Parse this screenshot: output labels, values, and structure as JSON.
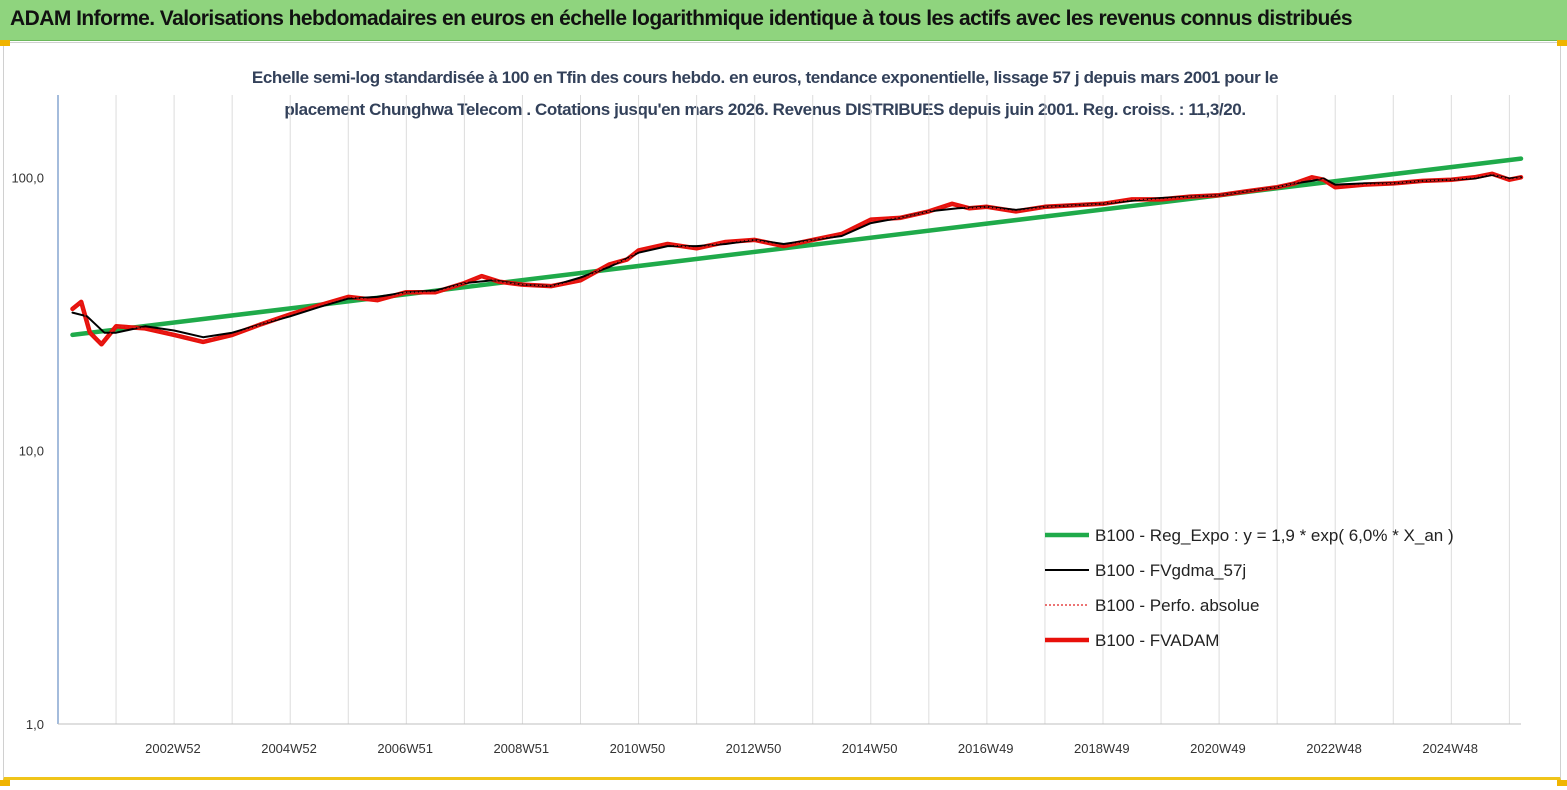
{
  "header": {
    "title": "ADAM Informe. Valorisations hebdomadaires en euros en échelle logarithmique identique à tous les actifs avec les revenus connus distribués"
  },
  "chart_data": {
    "type": "line",
    "subtitle_line1": "Echelle semi-log standardisée à 100 en Tfin des cours hebdo. en euros, tendance exponentielle, lissage 57 j depuis mars 2001 pour le",
    "subtitle_line2": "placement Chunghwa Telecom . Cotations jusqu'en mars 2026. Revenus DISTRIBUES depuis juin 2001. Reg. croiss. : 11,3/20.",
    "y_scale": "log",
    "ylim": [
      1,
      200
    ],
    "xlim": [
      2001.0,
      2026.2
    ],
    "y_ticks": [
      {
        "value": 100,
        "label": "100,0"
      },
      {
        "value": 10,
        "label": "10,0"
      },
      {
        "value": 1,
        "label": "1,0"
      }
    ],
    "x_ticks": [
      {
        "value": 2002.98,
        "label": "2002W52"
      },
      {
        "value": 2004.98,
        "label": "2004W52"
      },
      {
        "value": 2006.98,
        "label": "2006W51"
      },
      {
        "value": 2008.98,
        "label": "2008W51"
      },
      {
        "value": 2010.98,
        "label": "2010W50"
      },
      {
        "value": 2012.98,
        "label": "2012W50"
      },
      {
        "value": 2014.98,
        "label": "2014W50"
      },
      {
        "value": 2016.98,
        "label": "2016W49"
      },
      {
        "value": 2018.98,
        "label": "2018W49"
      },
      {
        "value": 2020.98,
        "label": "2020W49"
      },
      {
        "value": 2022.98,
        "label": "2022W48"
      },
      {
        "value": 2024.98,
        "label": "2024W48"
      }
    ],
    "grid": "vertical",
    "legend_position": "bottom-right",
    "series": [
      {
        "name": "B100 - Reg_Expo : y = 1,9 * exp( 6,0% *  X_an )",
        "color": "#1faa4a",
        "style": "thick",
        "x": [
          2001.25,
          2026.2
        ],
        "y": [
          26.5,
          117
        ]
      },
      {
        "name": "B100 - FVgdma_57j",
        "color": "#000000",
        "style": "solid",
        "x": [
          2001.25,
          2001.5,
          2001.8,
          2002.0,
          2002.5,
          2003.0,
          2003.5,
          2004.0,
          2004.5,
          2005.0,
          2005.5,
          2006.0,
          2006.5,
          2007.0,
          2007.5,
          2008.0,
          2008.5,
          2009.0,
          2009.5,
          2010.0,
          2010.5,
          2011.0,
          2011.5,
          2012.0,
          2012.5,
          2013.0,
          2013.5,
          2014.0,
          2014.5,
          2015.0,
          2015.5,
          2016.0,
          2016.5,
          2017.0,
          2017.5,
          2018.0,
          2018.5,
          2019.0,
          2019.5,
          2020.0,
          2020.5,
          2021.0,
          2021.5,
          2022.0,
          2022.3,
          2022.6,
          2022.8,
          2023.0,
          2023.5,
          2024.0,
          2024.5,
          2025.0,
          2025.4,
          2025.7,
          2026.0,
          2026.2
        ],
        "y": [
          32,
          31,
          27,
          27,
          28.5,
          27.5,
          26,
          27,
          29,
          31,
          33.5,
          36,
          36.5,
          38,
          38.5,
          41,
          42,
          40.5,
          40,
          43,
          47,
          53,
          56,
          56,
          57,
          59,
          57,
          59,
          61,
          68,
          71,
          75,
          77,
          78,
          76,
          78,
          79,
          80,
          82,
          84,
          85,
          86,
          89,
          92,
          95,
          97,
          99,
          94,
          95,
          95,
          97,
          98,
          99,
          102,
          99,
          100
        ]
      },
      {
        "name": "B100 - Perfo. absolue",
        "color": "#e02020",
        "style": "dotted",
        "x": [
          2001.25,
          2001.4,
          2001.55,
          2001.75,
          2002.0,
          2002.5,
          2003.0,
          2003.5,
          2004.0,
          2004.5,
          2005.0,
          2005.5,
          2006.0,
          2006.5,
          2007.0,
          2007.5,
          2008.0,
          2008.3,
          2008.6,
          2009.0,
          2009.5,
          2010.0,
          2010.5,
          2010.8,
          2011.0,
          2011.5,
          2012.0,
          2012.5,
          2013.0,
          2013.5,
          2014.0,
          2014.5,
          2015.0,
          2015.5,
          2016.0,
          2016.4,
          2016.7,
          2017.0,
          2017.5,
          2018.0,
          2018.5,
          2019.0,
          2019.5,
          2020.0,
          2020.5,
          2021.0,
          2021.5,
          2022.0,
          2022.3,
          2022.6,
          2022.8,
          2023.0,
          2023.5,
          2024.0,
          2024.5,
          2025.0,
          2025.4,
          2025.7,
          2026.0,
          2026.2
        ],
        "y": [
          33,
          35,
          27,
          24.5,
          28.5,
          28,
          26.5,
          25,
          26.5,
          29,
          31.5,
          34,
          36.5,
          35.5,
          38,
          38,
          41,
          43.5,
          41.5,
          40.5,
          40,
          42,
          48,
          50,
          54,
          57,
          55,
          58,
          59,
          56,
          59,
          62,
          70,
          71,
          75,
          80,
          77,
          78,
          75,
          78,
          79,
          80,
          83,
          83,
          85,
          86,
          89,
          92,
          95,
          100,
          98,
          92,
          94,
          95,
          97,
          98,
          100,
          103,
          98,
          100
        ]
      },
      {
        "name": "B100 - FVADAM",
        "color": "#e8100a",
        "style": "thick",
        "x": [
          2001.25,
          2001.4,
          2001.55,
          2001.75,
          2002.0,
          2002.5,
          2003.0,
          2003.5,
          2004.0,
          2004.5,
          2005.0,
          2005.5,
          2006.0,
          2006.5,
          2007.0,
          2007.5,
          2008.0,
          2008.3,
          2008.6,
          2009.0,
          2009.5,
          2010.0,
          2010.5,
          2010.8,
          2011.0,
          2011.5,
          2012.0,
          2012.5,
          2013.0,
          2013.5,
          2014.0,
          2014.5,
          2015.0,
          2015.5,
          2016.0,
          2016.4,
          2016.7,
          2017.0,
          2017.5,
          2018.0,
          2018.5,
          2019.0,
          2019.5,
          2020.0,
          2020.5,
          2021.0,
          2021.5,
          2022.0,
          2022.3,
          2022.6,
          2022.8,
          2023.0,
          2023.5,
          2024.0,
          2024.5,
          2025.0,
          2025.4,
          2025.7,
          2026.0,
          2026.2
        ],
        "y": [
          33,
          35,
          27,
          24.5,
          28.5,
          28,
          26.5,
          25,
          26.5,
          29,
          31.5,
          34,
          36.5,
          35.5,
          38,
          38,
          41,
          43.5,
          41.5,
          40.5,
          40,
          42,
          48,
          50,
          54,
          57,
          55,
          58,
          59,
          56,
          59,
          62,
          70,
          71,
          75,
          80,
          77,
          78,
          75,
          78,
          79,
          80,
          83,
          83,
          85,
          86,
          89,
          92,
          95,
          100,
          98,
          92,
          94,
          95,
          97,
          98,
          100,
          103,
          98,
          100
        ]
      }
    ]
  }
}
